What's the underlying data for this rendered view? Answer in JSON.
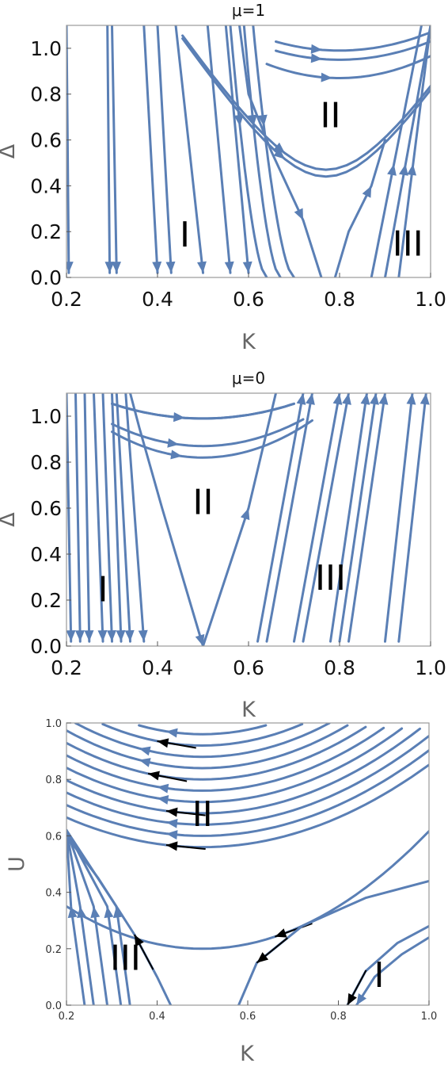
{
  "chart_data": [
    {
      "type": "streamplot",
      "title": "μ=1",
      "xlabel": "K",
      "ylabel": "Δ",
      "xlim": [
        0.2,
        1.0
      ],
      "ylim": [
        0.0,
        1.1
      ],
      "xticks": [
        "0.2",
        "0.4",
        "0.6",
        "0.8",
        "1.0"
      ],
      "yticks": [
        "0.0",
        "0.2",
        "0.4",
        "0.6",
        "0.8",
        "1.0"
      ],
      "grid": false,
      "regions": [
        {
          "label": "I",
          "x": 0.46,
          "y": 0.19
        },
        {
          "label": "II",
          "x": 0.78,
          "y": 0.71
        },
        {
          "label": "III",
          "x": 0.95,
          "y": 0.15
        }
      ],
      "color": "#5a7fb5"
    },
    {
      "type": "streamplot",
      "title": "μ=0",
      "xlabel": "K",
      "ylabel": "Δ",
      "xlim": [
        0.2,
        1.0
      ],
      "ylim": [
        0.0,
        1.1
      ],
      "xticks": [
        "0.2",
        "0.4",
        "0.6",
        "0.8",
        "1.0"
      ],
      "yticks": [
        "0.0",
        "0.2",
        "0.4",
        "0.6",
        "0.8",
        "1.0"
      ],
      "grid": false,
      "regions": [
        {
          "label": "I",
          "x": 0.28,
          "y": 0.25
        },
        {
          "label": "II",
          "x": 0.5,
          "y": 0.63
        },
        {
          "label": "III",
          "x": 0.78,
          "y": 0.3
        }
      ],
      "color": "#5a7fb5"
    },
    {
      "type": "streamplot",
      "title": "",
      "xlabel": "K",
      "ylabel": "U",
      "xlim": [
        0.2,
        1.0
      ],
      "ylim": [
        0.0,
        1.0
      ],
      "xticks": [
        "0.2",
        "0.4",
        "0.6",
        "0.8",
        "1.0"
      ],
      "yticks": [
        "0.0",
        "0.2",
        "0.4",
        "0.6",
        "0.8",
        "1.0"
      ],
      "grid": false,
      "regions": [
        {
          "label": "II",
          "x": 0.5,
          "y": 0.68
        },
        {
          "label": "III",
          "x": 0.33,
          "y": 0.17
        },
        {
          "label": "I",
          "x": 0.89,
          "y": 0.11
        }
      ],
      "color": "#5a7fb5"
    }
  ]
}
